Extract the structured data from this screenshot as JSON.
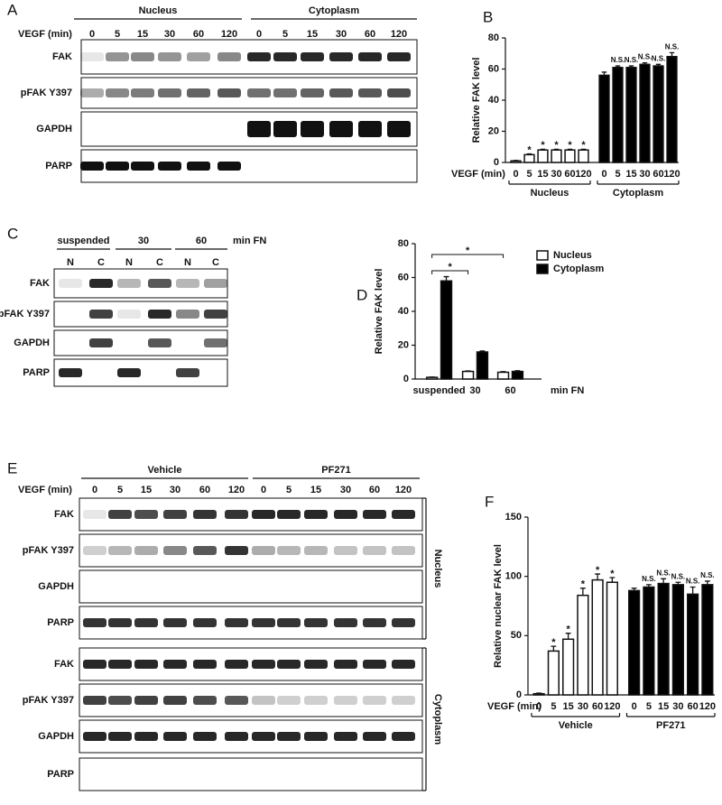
{
  "blots": [
    {
      "label": "A",
      "headers": [
        "Nucleus",
        "Cytoplasm"
      ],
      "condition_label": "VEGF (min)",
      "lanes": [
        "0",
        "5",
        "15",
        "30",
        "60",
        "120",
        "0",
        "5",
        "15",
        "30",
        "60",
        "120"
      ],
      "sections": [
        {
          "rows": [
            "FAK",
            "pFAK Y397",
            "GAPDH",
            "PARP"
          ]
        }
      ]
    },
    {
      "label": "C",
      "headers": [
        "suspended",
        "30",
        "60"
      ],
      "condition_label": "min FN",
      "lanes": [
        "N",
        "C",
        "N",
        "C",
        "N",
        "C"
      ],
      "sections": [
        {
          "rows": [
            "FAK",
            "pFAK Y397",
            "GAPDH",
            "PARP"
          ]
        }
      ]
    },
    {
      "label": "E",
      "headers": [
        "Vehicle",
        "PF271"
      ],
      "condition_label": "VEGF (min)",
      "lanes": [
        "0",
        "5",
        "15",
        "30",
        "60",
        "120",
        "0",
        "5",
        "15",
        "30",
        "60",
        "120"
      ],
      "sections": [
        {
          "name": "Nucleus",
          "rows": [
            "FAK",
            "pFAK Y397",
            "GAPDH",
            "PARP"
          ]
        },
        {
          "name": "Cytoplasm",
          "rows": [
            "FAK",
            "pFAK Y397",
            "GAPDH",
            "PARP"
          ]
        }
      ]
    }
  ],
  "chart_data": [
    {
      "type": "bar",
      "label": "B",
      "ylabel": "Relative FAK level",
      "xlabel": "VEGF (min)",
      "categories": [
        "0",
        "5",
        "15",
        "30",
        "60",
        "120"
      ],
      "ylim": [
        0,
        80
      ],
      "yticks": [
        0,
        20,
        40,
        60,
        80
      ],
      "series": [
        {
          "name": "Nucleus",
          "color": "#ffffff",
          "values": [
            1,
            5,
            8,
            8,
            8,
            8
          ],
          "errors": [
            0.3,
            0.5,
            0.5,
            0.5,
            0.5,
            0.5
          ],
          "annotations": [
            null,
            "*",
            "*",
            "*",
            "*",
            "*"
          ]
        },
        {
          "name": "Cytoplasm",
          "color": "#000000",
          "values": [
            56,
            61,
            61,
            63,
            62,
            68
          ],
          "errors": [
            2,
            1,
            1,
            1,
            1,
            2.5
          ],
          "annotations": [
            null,
            "N.S.",
            "N.S.",
            "N.S.",
            "N.S.",
            "N.S."
          ]
        }
      ]
    },
    {
      "type": "grouped-bar",
      "label": "D",
      "ylabel": "Relative FAK level",
      "xlabel": "min FN",
      "categories": [
        "suspended",
        "30",
        "60"
      ],
      "ylim": [
        0,
        80
      ],
      "yticks": [
        0,
        20,
        40,
        60,
        80
      ],
      "legend": "top-right",
      "series": [
        {
          "name": "Nucleus",
          "color": "#ffffff",
          "values": [
            1,
            4.5,
            4
          ],
          "errors": [
            0.2,
            0.3,
            0.4
          ]
        },
        {
          "name": "Cytoplasm",
          "color": "#000000",
          "values": [
            58,
            16,
            4.5
          ],
          "errors": [
            2.5,
            0.6,
            0.4
          ]
        }
      ],
      "annotations": [
        "*",
        "*"
      ]
    },
    {
      "type": "bar",
      "label": "F",
      "ylabel": "Relative nuclear FAK level",
      "xlabel": "VEGF (min)",
      "categories": [
        "0",
        "5",
        "15",
        "30",
        "60",
        "120"
      ],
      "ylim": [
        0,
        150
      ],
      "yticks": [
        0,
        50,
        100,
        150
      ],
      "series": [
        {
          "name": "Vehicle",
          "color": "#ffffff",
          "values": [
            1,
            37,
            47,
            84,
            97,
            95
          ],
          "errors": [
            0.5,
            4,
            5,
            6,
            5,
            4
          ],
          "annotations": [
            null,
            "*",
            "*",
            "*",
            "*",
            "*"
          ]
        },
        {
          "name": "PF271",
          "color": "#000000",
          "values": [
            88,
            91,
            94,
            93,
            85,
            93
          ],
          "errors": [
            2,
            2,
            4,
            2,
            6,
            3
          ],
          "annotations": [
            null,
            "N.S.",
            "N.S.",
            "N.S.",
            "N.S.",
            "N.S."
          ]
        }
      ]
    }
  ]
}
